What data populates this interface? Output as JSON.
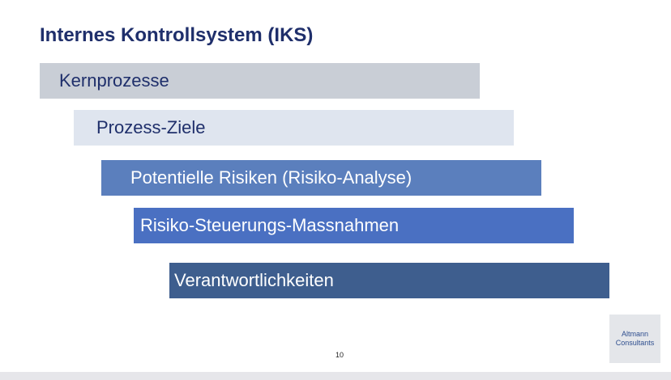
{
  "slide": {
    "title": "Internes Kontrollsystem (IKS)",
    "bars": [
      {
        "label": "Kernprozesse",
        "color": "#c9ced6"
      },
      {
        "label": "Prozess-Ziele",
        "color": "#dfe5ef"
      },
      {
        "label": "Potentielle Risiken (Risiko-Analyse)",
        "color": "#5b7fbd"
      },
      {
        "label": "Risiko-Steuerungs-Massnahmen",
        "color": "#4a70c2"
      },
      {
        "label": "Verantwortlichkeiten",
        "color": "#3e5e8e"
      }
    ],
    "page_number": "10",
    "logo": {
      "line1": "Altmann",
      "line2": "Consultants"
    }
  },
  "colors": {
    "title": "#1f2f6b",
    "background": "#ffffff"
  }
}
